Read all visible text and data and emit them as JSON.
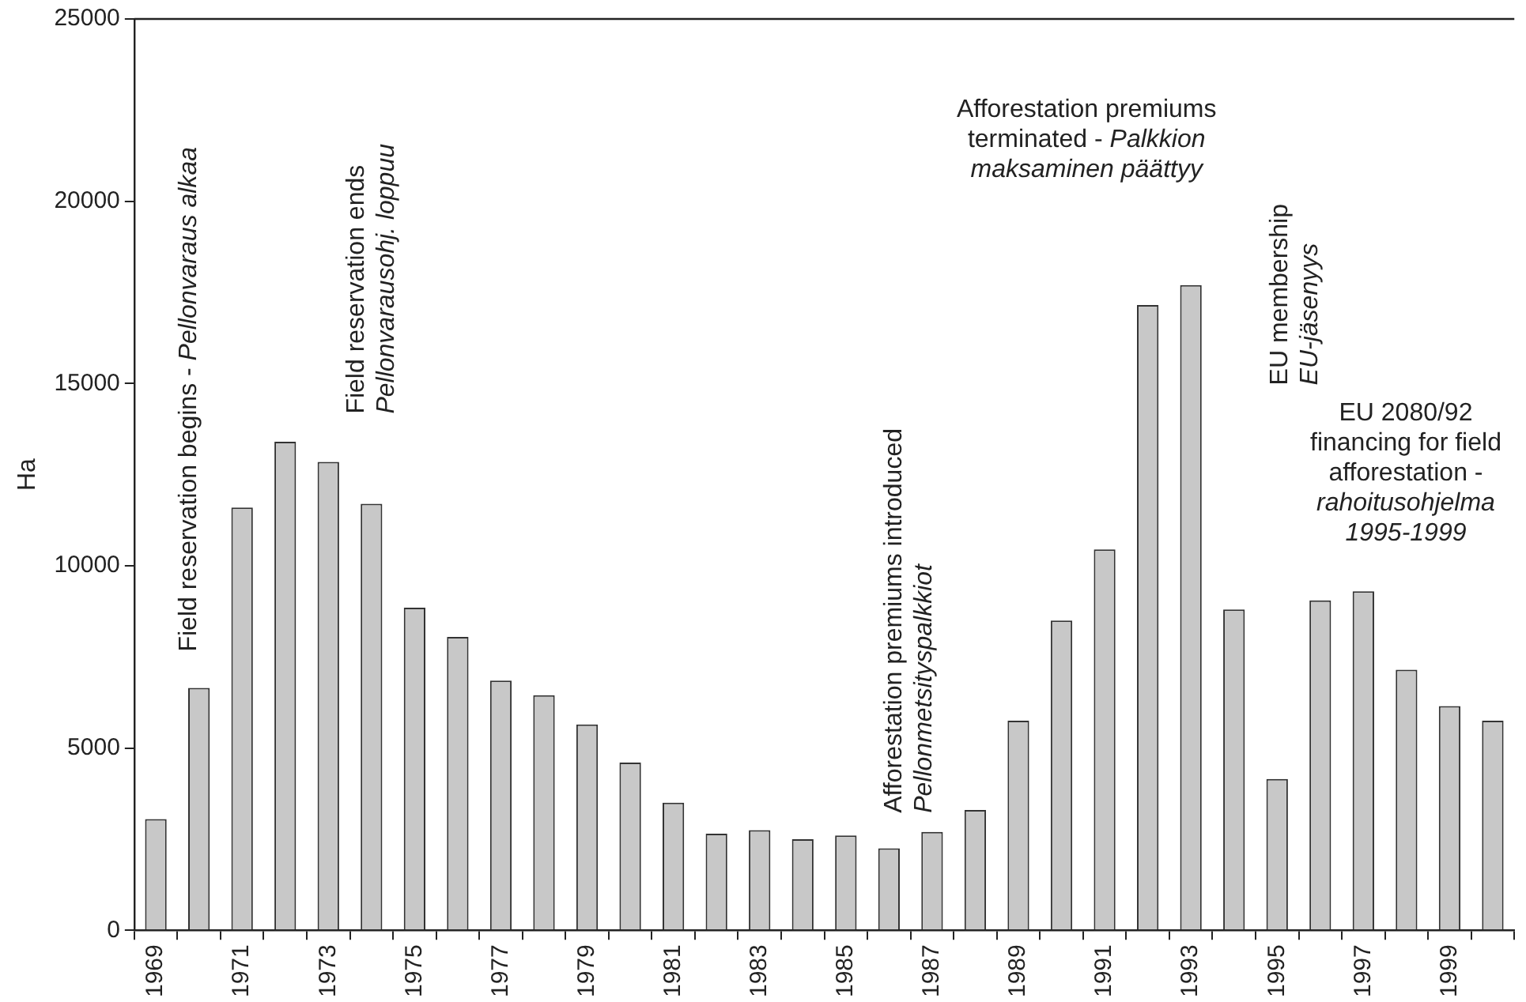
{
  "chart_data": {
    "type": "bar",
    "ylabel": "Ha",
    "categories": [
      "1969",
      null,
      "1971",
      null,
      "1973",
      null,
      "1975",
      null,
      "1977",
      null,
      "1979",
      null,
      "1981",
      null,
      "1983",
      null,
      "1985",
      null,
      "1987",
      null,
      "1989",
      null,
      "1991",
      null,
      "1993",
      null,
      "1995",
      null,
      "1997",
      null,
      "1999",
      null
    ],
    "values": [
      3050,
      6650,
      11600,
      13400,
      12850,
      11700,
      8850,
      8050,
      6850,
      6450,
      5650,
      4600,
      3500,
      2650,
      2750,
      2500,
      2600,
      2250,
      2700,
      3300,
      5750,
      8500,
      10450,
      17150,
      17700,
      8800,
      4150,
      9050,
      9300,
      7150,
      6150,
      5750
    ],
    "color": "#c8c8c8",
    "ylim": [
      0,
      25000
    ],
    "yticks": [
      0,
      5000,
      10000,
      15000,
      20000,
      25000
    ],
    "grid": false,
    "legend": false,
    "annotations": [
      "Field reservation begins - Pellonvaraus alkaa",
      "Field reservation ends\nPellonvarausohj. loppuu",
      "Afforestation premiums introduced\nPellonmetsityspalkkiot",
      "Afforestation premiums\nterminated - Palkkion\nmaksaminen päättyy",
      "EU membership\nEU-jäsenyys",
      "EU 2080/92\nfinancing for field\nafforestation -\nrahoitusohjelma\n1995-1999"
    ]
  }
}
